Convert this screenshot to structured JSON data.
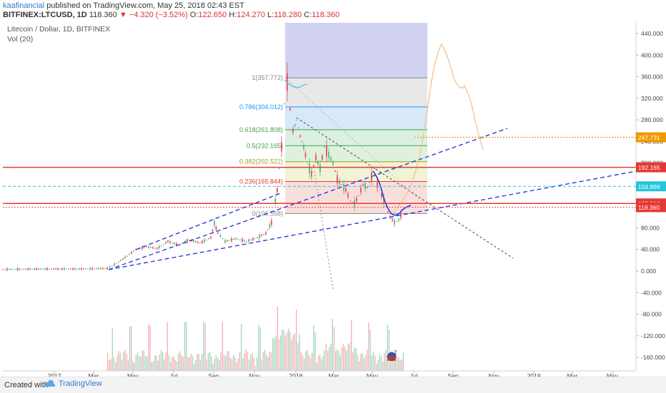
{
  "header": {
    "author": "kaafinancial",
    "published": " published on TradingView.com, May 25, 2018 02:43 EST",
    "symbol": "BITFINEX:LTCUSD, 1D",
    "last": "118.360",
    "change": "−4.320 (−3.52%)",
    "o_label": "O:",
    "o": "122.650",
    "h_label": "H:",
    "h": "124.270",
    "l_label": "L:",
    "l": "118.280",
    "c_label": "C:",
    "c": "118.360"
  },
  "legend": {
    "title": "Litecoin / Dollar, 1D, BITFINEX",
    "volume": "Vol (20)"
  },
  "footer": {
    "created": "Created with",
    "brand": "TradingView",
    "brand_icon": "tradingview-cloud-icon"
  },
  "chart_data": {
    "type": "line",
    "yaxis": {
      "ticks": [
        "440.000",
        "400.000",
        "360.000",
        "320.000",
        "280.000",
        "240.000",
        "200.000",
        "80.000",
        "40.000",
        "0.000",
        "-40.000",
        "-80.000",
        "-120.000",
        "-160.000"
      ],
      "ylim": [
        -180,
        460
      ]
    },
    "xaxis": {
      "ticks": [
        "2017",
        "Mar",
        "May",
        "Jul",
        "Sep",
        "Nov",
        "2018",
        "Mar",
        "May",
        "Jul",
        "Sep",
        "Nov",
        "2019",
        "Mar",
        "May"
      ]
    },
    "price_labels": [
      {
        "value": 247.731,
        "text": "247.731",
        "color": "#f29900"
      },
      {
        "value": 192.165,
        "text": "192.165",
        "color": "#e53935"
      },
      {
        "value": 156.899,
        "text": "156.899",
        "color": "#26c6da"
      },
      {
        "value": 125.218,
        "text": "125.218",
        "color": "#e53935"
      },
      {
        "value": 118.36,
        "text": "118.360",
        "color": "#e53935"
      }
    ],
    "fib_levels": [
      {
        "ratio": "1",
        "price": "357.772",
        "color": "#888888"
      },
      {
        "ratio": "0.786",
        "price": "304.012",
        "color": "#2196f3"
      },
      {
        "ratio": "0.618",
        "price": "261.808",
        "color": "#43a047"
      },
      {
        "ratio": "0.5",
        "price": "232.165",
        "color": "#43a047"
      },
      {
        "ratio": "0.382",
        "price": "202.522",
        "color": "#9e9d24"
      },
      {
        "ratio": "0.236",
        "price": "165.844",
        "color": "#e53935"
      },
      {
        "ratio": "0",
        "price": "106.558",
        "color": "#888888"
      }
    ],
    "event_badge": "2",
    "colors": {
      "candle_up": "#53b987",
      "candle_down": "#eb4d5c",
      "trendline": "#1f2fd6",
      "fib_top": "#c9c9f0",
      "projection": "#f5c28a"
    }
  }
}
